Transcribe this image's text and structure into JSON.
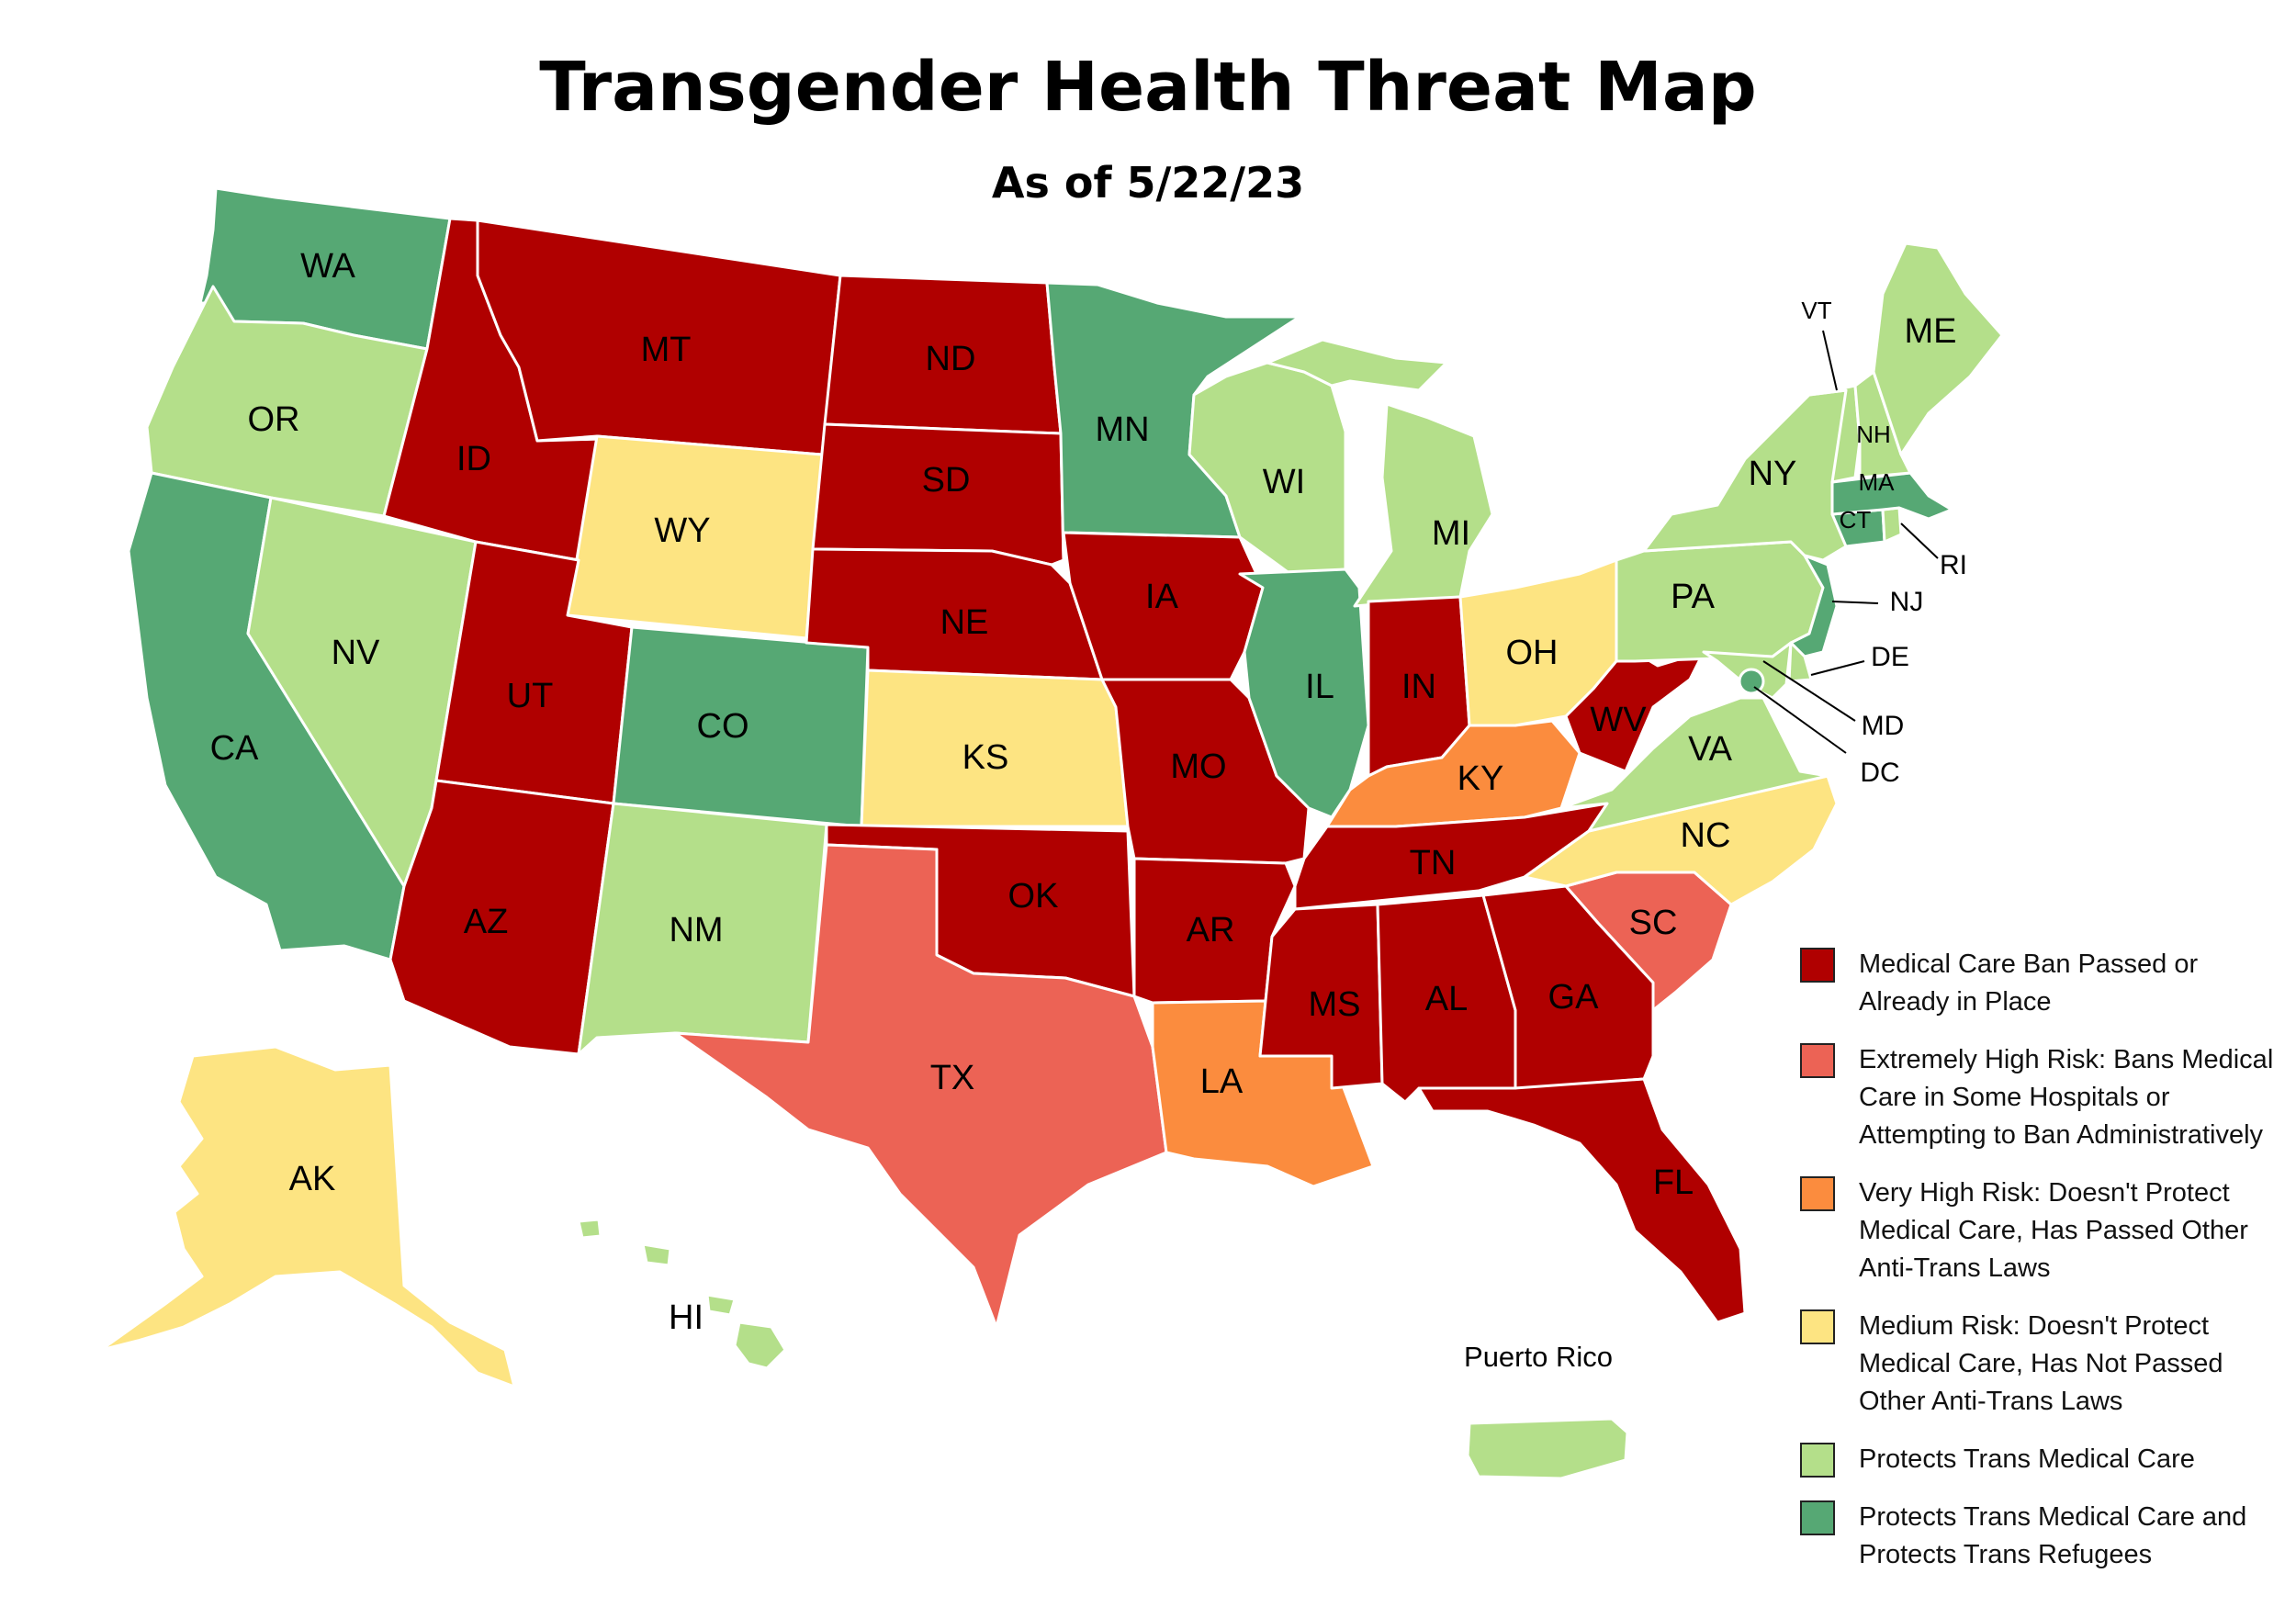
{
  "title": "Transgender Health Threat Map",
  "subtitle": "As of 5/22/23",
  "colors": {
    "ban": "#b00000",
    "extreme": "#ec6355",
    "very_high": "#fb8c3e",
    "medium": "#fde482",
    "protects": "#b4df8a",
    "protects_refuge": "#56a874"
  },
  "legend": [
    {
      "category": "ban",
      "label": "Medical Care Ban Passed or Already in Place",
      "color": "#b00000"
    },
    {
      "category": "extreme",
      "label": "Extremely High Risk: Bans Medical Care in Some Hospitals or Attempting to Ban Administratively",
      "color": "#ec6355"
    },
    {
      "category": "very_high",
      "label": "Very High Risk: Doesn't Protect Medical Care, Has Passed Other Anti-Trans Laws",
      "color": "#fb8c3e"
    },
    {
      "category": "medium",
      "label": "Medium Risk: Doesn't Protect Medical Care, Has Not Passed Other Anti-Trans Laws",
      "color": "#fde482"
    },
    {
      "category": "protects",
      "label": "Protects Trans Medical Care",
      "color": "#b4df8a"
    },
    {
      "category": "protects_refuge",
      "label": "Protects Trans Medical Care and Protects Trans Refugees",
      "color": "#56a874"
    }
  ],
  "regions": {
    "WA": {
      "label": "WA",
      "category": "protects_refuge"
    },
    "OR": {
      "label": "OR",
      "category": "protects"
    },
    "CA": {
      "label": "CA",
      "category": "protects_refuge"
    },
    "NV": {
      "label": "NV",
      "category": "protects"
    },
    "ID": {
      "label": "ID",
      "category": "ban"
    },
    "MT": {
      "label": "MT",
      "category": "ban"
    },
    "WY": {
      "label": "WY",
      "category": "medium"
    },
    "UT": {
      "label": "UT",
      "category": "ban"
    },
    "AZ": {
      "label": "AZ",
      "category": "ban"
    },
    "CO": {
      "label": "CO",
      "category": "protects_refuge"
    },
    "NM": {
      "label": "NM",
      "category": "protects"
    },
    "ND": {
      "label": "ND",
      "category": "ban"
    },
    "SD": {
      "label": "SD",
      "category": "ban"
    },
    "NE": {
      "label": "NE",
      "category": "ban"
    },
    "KS": {
      "label": "KS",
      "category": "medium"
    },
    "OK": {
      "label": "OK",
      "category": "ban"
    },
    "TX": {
      "label": "TX",
      "category": "extreme"
    },
    "MN": {
      "label": "MN",
      "category": "protects_refuge"
    },
    "IA": {
      "label": "IA",
      "category": "ban"
    },
    "MO": {
      "label": "MO",
      "category": "ban"
    },
    "AR": {
      "label": "AR",
      "category": "ban"
    },
    "LA": {
      "label": "LA",
      "category": "very_high"
    },
    "WI": {
      "label": "WI",
      "category": "protects"
    },
    "IL": {
      "label": "IL",
      "category": "protects_refuge"
    },
    "MI": {
      "label": "MI",
      "category": "protects"
    },
    "IN": {
      "label": "IN",
      "category": "ban"
    },
    "OH": {
      "label": "OH",
      "category": "medium"
    },
    "KY": {
      "label": "KY",
      "category": "very_high"
    },
    "TN": {
      "label": "TN",
      "category": "ban"
    },
    "MS": {
      "label": "MS",
      "category": "ban"
    },
    "AL": {
      "label": "AL",
      "category": "ban"
    },
    "GA": {
      "label": "GA",
      "category": "ban"
    },
    "FL": {
      "label": "FL",
      "category": "ban"
    },
    "SC": {
      "label": "SC",
      "category": "extreme"
    },
    "NC": {
      "label": "NC",
      "category": "medium"
    },
    "VA": {
      "label": "VA",
      "category": "protects"
    },
    "WV": {
      "label": "WV",
      "category": "ban"
    },
    "PA": {
      "label": "PA",
      "category": "protects"
    },
    "NY": {
      "label": "NY",
      "category": "protects"
    },
    "NJ": {
      "label": "NJ",
      "category": "protects_refuge"
    },
    "DE": {
      "label": "DE",
      "category": "protects"
    },
    "MD": {
      "label": "MD",
      "category": "protects"
    },
    "DC": {
      "label": "DC",
      "category": "protects_refuge"
    },
    "CT": {
      "label": "CT",
      "category": "protects_refuge"
    },
    "RI": {
      "label": "RI",
      "category": "protects"
    },
    "MA": {
      "label": "MA",
      "category": "protects_refuge"
    },
    "VT": {
      "label": "VT",
      "category": "protects"
    },
    "NH": {
      "label": "NH",
      "category": "protects"
    },
    "ME": {
      "label": "ME",
      "category": "protects"
    },
    "AK": {
      "label": "AK",
      "category": "medium"
    },
    "HI": {
      "label": "HI",
      "category": "protects"
    },
    "PR": {
      "label": "Puerto Rico",
      "category": "protects"
    }
  }
}
